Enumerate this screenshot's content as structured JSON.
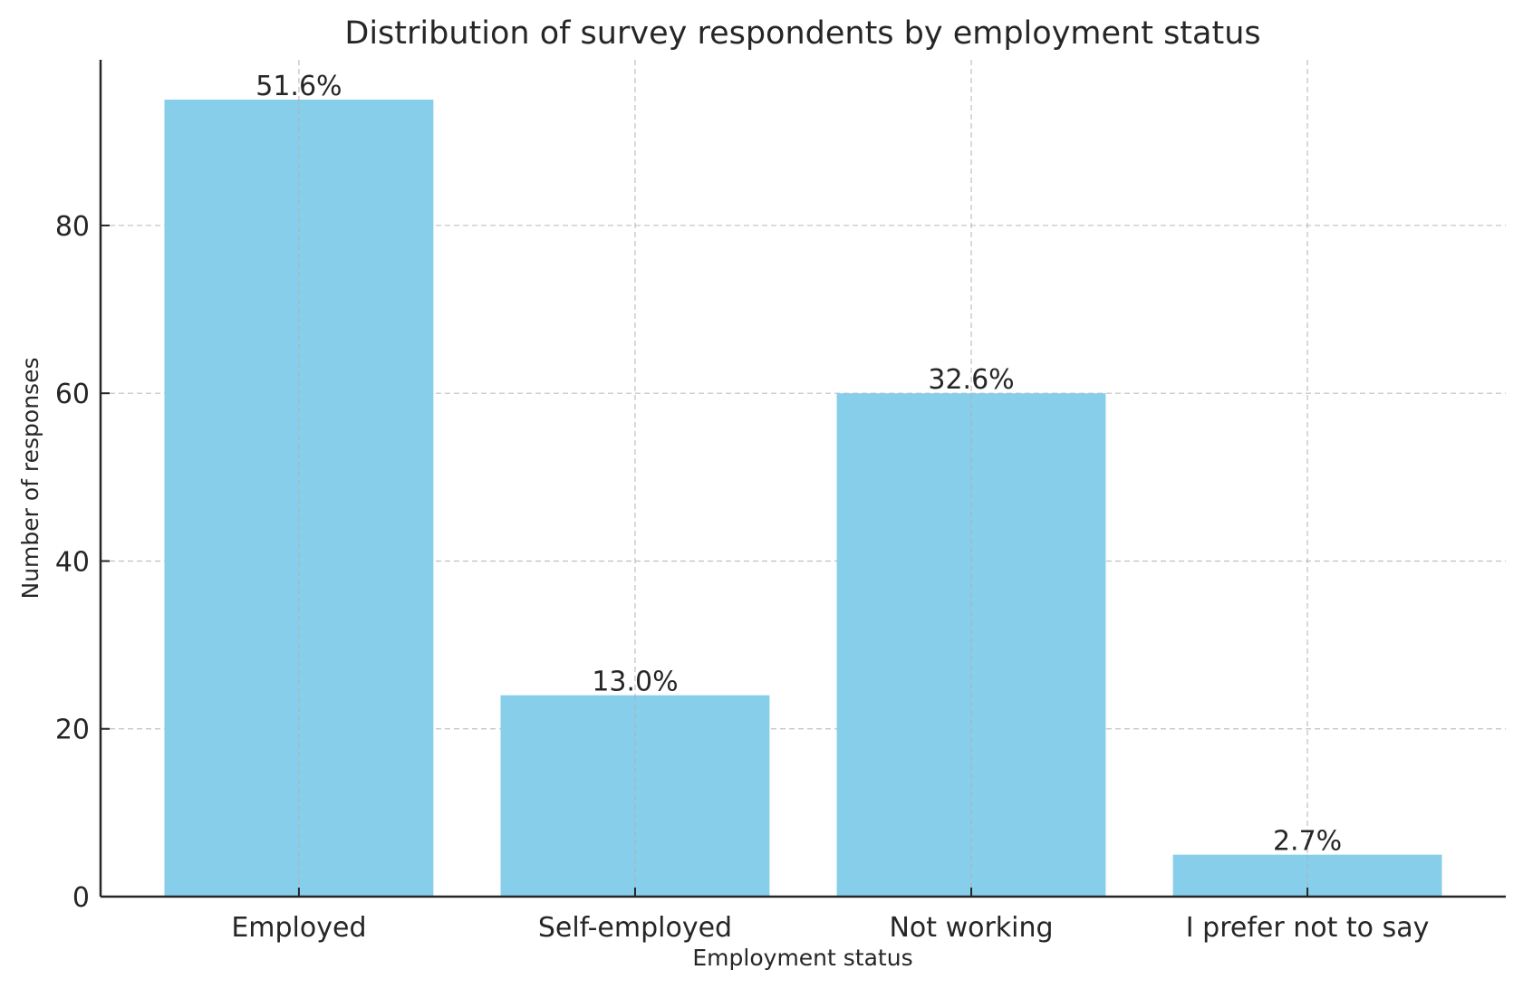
{
  "chart_data": {
    "type": "bar",
    "title": "Distribution of survey respondents by employment status",
    "xlabel": "Employment status",
    "ylabel": "Number of responses",
    "categories": [
      "Employed",
      "Self-employed",
      "Not working",
      "I prefer not to say"
    ],
    "values": [
      95,
      24,
      60,
      5
    ],
    "data_labels": [
      "51.6%",
      "13.0%",
      "32.6%",
      "2.7%"
    ],
    "ylim": [
      0,
      99.75
    ],
    "yticks": [
      0,
      20,
      40,
      60,
      80
    ],
    "grid": true,
    "bar_color": "#87CEEB"
  }
}
